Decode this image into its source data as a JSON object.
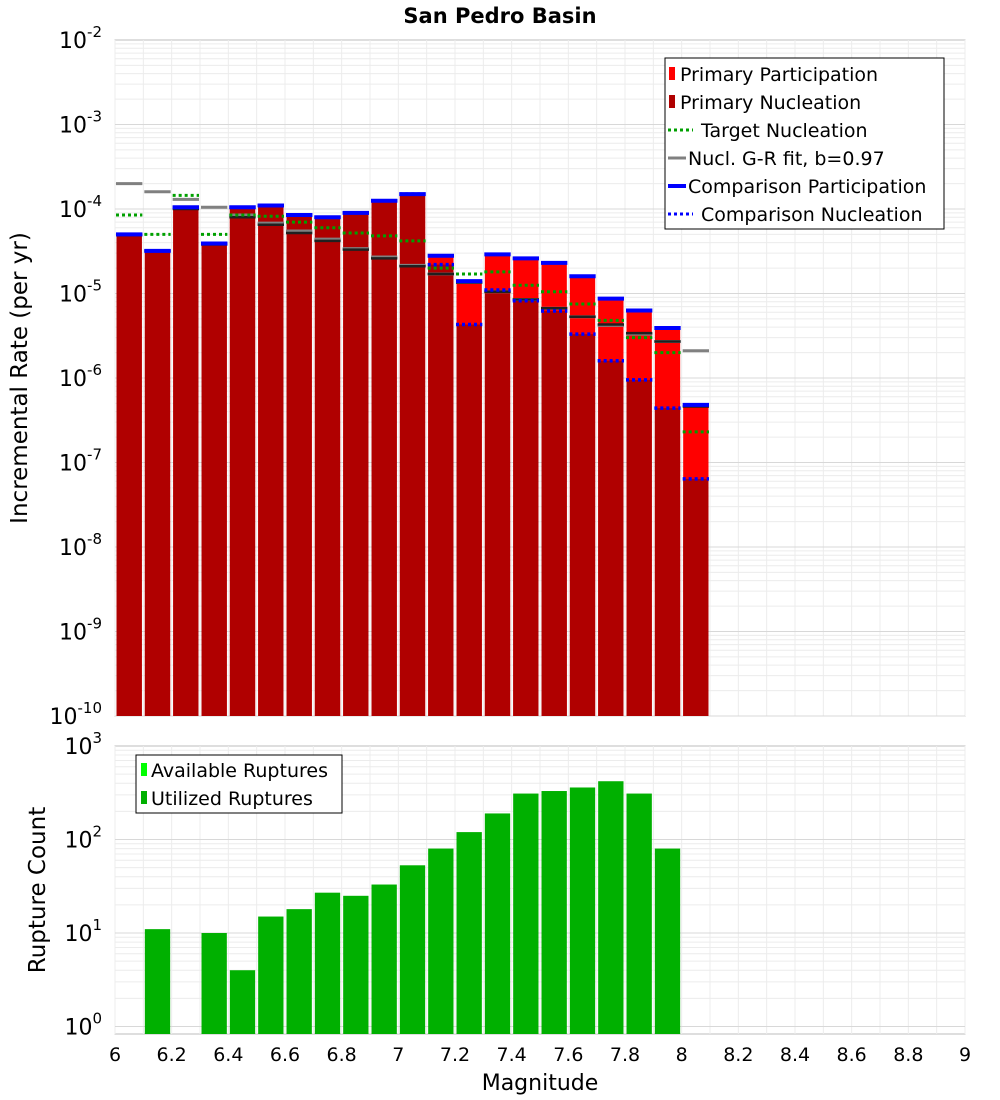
{
  "chart_data": [
    {
      "type": "bar",
      "title": "San Pedro Basin",
      "ylabel": "Incremental Rate (per yr)",
      "xlabel": "",
      "yscale": "log",
      "ylim": [
        1e-10,
        0.01
      ],
      "xlim": [
        6,
        9
      ],
      "grid": true,
      "legend_position": "top-right",
      "bin_width": 0.1,
      "x": [
        6.05,
        6.15,
        6.25,
        6.35,
        6.45,
        6.55,
        6.65,
        6.75,
        6.85,
        6.95,
        7.05,
        7.15,
        7.25,
        7.35,
        7.45,
        7.55,
        7.65,
        7.75,
        7.85,
        7.95,
        8.05
      ],
      "series": [
        {
          "name": "Primary Participation",
          "style": "bar",
          "color": "#ff0000",
          "values": [
            5e-05,
            3.2e-05,
            0.000105,
            3.9e-05,
            0.000105,
            0.00011,
            8.5e-05,
            8e-05,
            9e-05,
            0.000125,
            0.00015,
            2.8e-05,
            1.4e-05,
            2.9e-05,
            2.6e-05,
            2.3e-05,
            1.6e-05,
            8.7e-06,
            6.3e-06,
            3.9e-06,
            4.8e-07
          ]
        },
        {
          "name": "Primary Nucleation",
          "style": "bar",
          "color": "#b00000",
          "values": [
            5e-05,
            3.2e-05,
            0.000105,
            3.9e-05,
            0.000105,
            0.00011,
            8.5e-05,
            8e-05,
            9e-05,
            0.000125,
            0.00015,
            2.2e-05,
            4.3e-06,
            1.1e-05,
            8.2e-06,
            6.2e-06,
            3.3e-06,
            1.6e-06,
            9.5e-07,
            4.4e-07,
            6.4e-08
          ]
        },
        {
          "name": "Target Nucleation",
          "style": "dotted",
          "color": "#00a000",
          "values": [
            8.5e-05,
            5e-05,
            0.000145,
            5e-05,
            8.5e-05,
            8.2e-05,
            7e-05,
            6e-05,
            5.2e-05,
            4.8e-05,
            4.2e-05,
            2e-05,
            1.7e-05,
            1.8e-05,
            1.25e-05,
            1.05e-05,
            7.5e-06,
            4.8e-06,
            3e-06,
            2e-06,
            2.3e-07
          ]
        },
        {
          "name": "Nucl. G-R fit, b=0.97",
          "style": "solid",
          "color": "#808080",
          "values": [
            0.0002,
            0.00016,
            0.00013,
            0.000105,
            8.5e-05,
            6.8e-05,
            5.5e-05,
            4.4e-05,
            3.4e-05,
            2.7e-05,
            2.15e-05,
            1.7e-05,
            1.35e-05,
            1.05e-05,
            8.5e-06,
            6.7e-06,
            5.3e-06,
            4.2e-06,
            3.3e-06,
            2.7e-06,
            2.1e-06
          ]
        },
        {
          "name": "Comparison Participation",
          "style": "solid",
          "color": "#0000ff",
          "values": [
            5e-05,
            3.2e-05,
            0.000105,
            3.9e-05,
            0.000105,
            0.00011,
            8.5e-05,
            8e-05,
            9e-05,
            0.000125,
            0.00015,
            2.8e-05,
            1.4e-05,
            2.9e-05,
            2.6e-05,
            2.3e-05,
            1.6e-05,
            8.7e-06,
            6.3e-06,
            3.9e-06,
            4.8e-07
          ]
        },
        {
          "name": "Comparison Nucleation",
          "style": "dotted",
          "color": "#0000ff",
          "values": [
            5e-05,
            3.2e-05,
            0.000105,
            3.9e-05,
            0.000105,
            0.00011,
            8.5e-05,
            8e-05,
            9e-05,
            0.000125,
            0.00015,
            2.2e-05,
            4.3e-06,
            1.1e-05,
            8.2e-06,
            6.2e-06,
            3.3e-06,
            1.6e-06,
            9.5e-07,
            4.4e-07,
            6.4e-08
          ]
        }
      ],
      "black_marks": [
        4.9e-05,
        3.2e-05,
        0.0001,
        3.8e-05,
        8e-05,
        6.5e-05,
        5.2e-05,
        4.2e-05,
        3.3e-05,
        2.6e-05,
        2.1e-05,
        1.7e-05,
        1.35e-05,
        1.05e-05,
        8.5e-06,
        6.7e-06,
        5.3e-06,
        4.3e-06,
        3.4e-06,
        2.7e-06,
        4.6e-07
      ]
    },
    {
      "type": "bar",
      "title": "",
      "ylabel": "Rupture Count",
      "xlabel": "Magnitude",
      "yscale": "log",
      "ylim": [
        1,
        1000
      ],
      "xlim": [
        6,
        9
      ],
      "grid": true,
      "legend_position": "top-left",
      "bin_width": 0.1,
      "x": [
        6.15,
        6.35,
        6.45,
        6.55,
        6.65,
        6.75,
        6.85,
        6.95,
        7.05,
        7.15,
        7.25,
        7.35,
        7.45,
        7.55,
        7.65,
        7.75,
        7.85,
        7.95
      ],
      "series": [
        {
          "name": "Available Ruptures",
          "style": "bar",
          "color": "#00ff00",
          "values": [
            11,
            10,
            4,
            15,
            18,
            27,
            25,
            33,
            53,
            80,
            120,
            190,
            310,
            330,
            360,
            420,
            310,
            80
          ]
        },
        {
          "name": "Utilized Ruptures",
          "style": "bar",
          "color": "#00b000",
          "values": [
            11,
            10,
            4,
            15,
            18,
            27,
            25,
            33,
            53,
            80,
            120,
            190,
            310,
            330,
            360,
            420,
            310,
            80
          ]
        }
      ]
    }
  ],
  "x_ticks": [
    "6",
    "6.2",
    "6.4",
    "6.6",
    "6.8",
    "7",
    "7.2",
    "7.4",
    "7.6",
    "7.8",
    "8",
    "8.2",
    "8.4",
    "8.6",
    "8.8",
    "9"
  ],
  "top_y_ticks": [
    -2,
    -3,
    -4,
    -5,
    -6,
    -7,
    -8,
    -9,
    -10
  ],
  "bottom_y_ticks": [
    3,
    2,
    1,
    0
  ]
}
